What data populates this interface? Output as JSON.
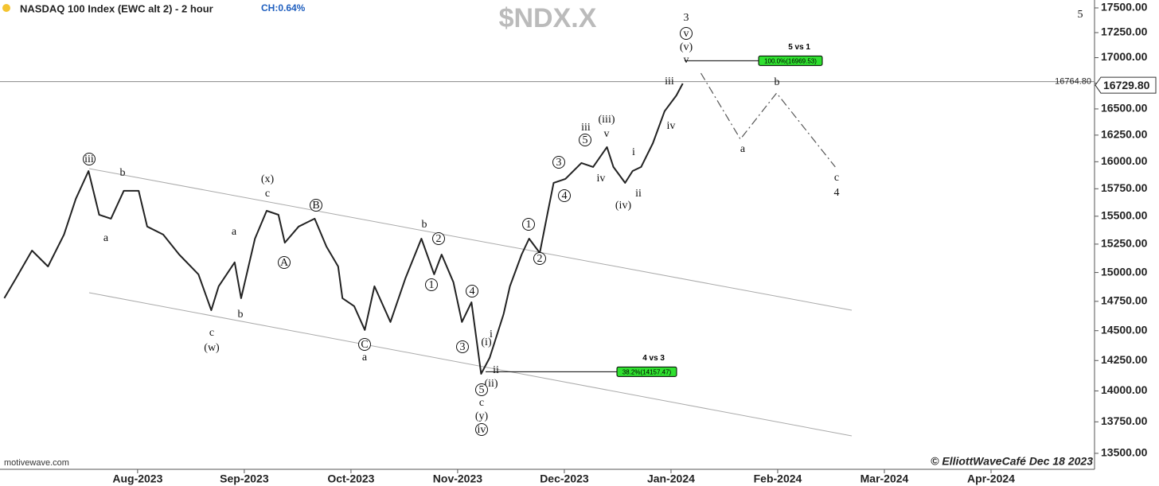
{
  "chart_data": {
    "type": "line",
    "title": "NASDAQ 100 Index (EWC alt 2) - 2 hour",
    "change": "CH:0.64%",
    "symbol": "$NDX.X",
    "source": "motivewave.com",
    "credit": "© ElliottWaveCafé Dec 18 2023",
    "log_scale": true,
    "xlim": [
      -1.29,
      8.97
    ],
    "xticks": [
      {
        "value": 0,
        "label": "Aug-2023"
      },
      {
        "value": 1,
        "label": "Sep-2023"
      },
      {
        "value": 2,
        "label": "Oct-2023"
      },
      {
        "value": 3,
        "label": "Nov-2023"
      },
      {
        "value": 4,
        "label": "Dec-2023"
      },
      {
        "value": 5,
        "label": "Jan-2024"
      },
      {
        "value": 6,
        "label": "Feb-2024"
      },
      {
        "value": 7,
        "label": "Mar-2024"
      },
      {
        "value": 8,
        "label": "Apr-2024"
      }
    ],
    "ylim": [
      13375,
      17581
    ],
    "yticks": [
      {
        "value": 13500,
        "label": "13500.00"
      },
      {
        "value": 13750,
        "label": "13750.00"
      },
      {
        "value": 14000,
        "label": "14000.00"
      },
      {
        "value": 14250,
        "label": "14250.00"
      },
      {
        "value": 14500,
        "label": "14500.00"
      },
      {
        "value": 14750,
        "label": "14750.00"
      },
      {
        "value": 15000,
        "label": "15000.00"
      },
      {
        "value": 15250,
        "label": "15250.00"
      },
      {
        "value": 15500,
        "label": "15500.00"
      },
      {
        "value": 15750,
        "label": "15750.00"
      },
      {
        "value": 16000,
        "label": "16000.00"
      },
      {
        "value": 16250,
        "label": "16250.00"
      },
      {
        "value": 16500,
        "label": "16500.00"
      },
      {
        "value": 16750,
        "label": "16750.00"
      },
      {
        "value": 17000,
        "label": "17000.00"
      },
      {
        "value": 17250,
        "label": "17250.00"
      },
      {
        "value": 17500,
        "label": "17500.00"
      }
    ],
    "series": [
      {
        "color": "#222222",
        "x": [
          -1.25,
          -1.14,
          -0.99,
          -0.84,
          -0.69,
          -0.58,
          -0.46,
          -0.36,
          -0.25,
          -0.13,
          0.01,
          0.09,
          0.24,
          0.39,
          0.57,
          0.69,
          0.76,
          0.91,
          0.97,
          1.1,
          1.21,
          1.32,
          1.38,
          1.51,
          1.66,
          1.77,
          1.88,
          1.92,
          2.03,
          2.13,
          2.22,
          2.37,
          2.51,
          2.66,
          2.78,
          2.85,
          2.96,
          3.04,
          3.13,
          3.22,
          3.3,
          3.43,
          3.49,
          3.6,
          3.67,
          3.77,
          3.84,
          3.9,
          4.01,
          4.16,
          4.27,
          4.4,
          4.46,
          4.57,
          4.64,
          4.72,
          4.83,
          4.94,
          5.05,
          5.11
        ],
        "values": [
          14777,
          14949,
          15193,
          15053,
          15335,
          15657,
          15914,
          15513,
          15478,
          15731,
          15731,
          15407,
          15335,
          15158,
          14984,
          14674,
          14880,
          15089,
          14777,
          15299,
          15549,
          15513,
          15263,
          15407,
          15478,
          15228,
          15053,
          14777,
          14709,
          14506,
          14880,
          14574,
          14949,
          15299,
          14984,
          15158,
          14915,
          14574,
          14742,
          14140,
          14272,
          14640,
          14880,
          15158,
          15299,
          15172,
          15513,
          15804,
          15841,
          15988,
          15951,
          16137,
          15951,
          15804,
          15914,
          15951,
          16174,
          16478,
          16630,
          16746
        ]
      },
      {
        "color": "#555555",
        "dash": true,
        "x": [
          5.28,
          5.65,
          5.99,
          6.54
        ],
        "values": [
          16847,
          16212,
          16653,
          15951
        ]
      }
    ],
    "levels": [
      {
        "value": 16764.8,
        "label": "16764.80"
      }
    ],
    "last_price": {
      "value": 16729.8,
      "label": "16729.80"
    },
    "fib_levels": [
      {
        "value": 16969.53,
        "label": "100.0%(16969.53)",
        "note": "5 vs 1"
      },
      {
        "value": 14157.47,
        "label": "38.2%(14157.47)",
        "note": "4 vs 3"
      }
    ],
    "annotations": [
      {
        "text": "iii",
        "circled": true
      },
      {
        "text": "b"
      },
      {
        "text": "a"
      },
      {
        "text": "c"
      },
      {
        "text": "(w)"
      },
      {
        "text": "a"
      },
      {
        "text": "b"
      },
      {
        "text": "(x)"
      },
      {
        "text": "c"
      },
      {
        "text": "B",
        "circled": true
      },
      {
        "text": "A",
        "circled": true
      },
      {
        "text": "C",
        "circled": true
      },
      {
        "text": "a"
      },
      {
        "text": "b"
      },
      {
        "text": "2",
        "circled": true
      },
      {
        "text": "1",
        "circled": true
      },
      {
        "text": "4",
        "circled": true
      },
      {
        "text": "3",
        "circled": true
      },
      {
        "text": "(i)"
      },
      {
        "text": "i"
      },
      {
        "text": "ii"
      },
      {
        "text": "(ii)"
      },
      {
        "text": "5",
        "circled": true
      },
      {
        "text": "c"
      },
      {
        "text": "(y)"
      },
      {
        "text": "iv",
        "circled": true
      },
      {
        "text": "1",
        "circled": true
      },
      {
        "text": "2",
        "circled": true
      },
      {
        "text": "3",
        "circled": true
      },
      {
        "text": "4",
        "circled": true
      },
      {
        "text": "iii"
      },
      {
        "text": "5",
        "circled": true
      },
      {
        "text": "iv"
      },
      {
        "text": "(iii)"
      },
      {
        "text": "v"
      },
      {
        "text": "i"
      },
      {
        "text": "ii"
      },
      {
        "text": "(iv)"
      },
      {
        "text": "iv"
      },
      {
        "text": "iii"
      },
      {
        "text": "3"
      },
      {
        "text": "v",
        "circled": true
      },
      {
        "text": "(v)"
      },
      {
        "text": "v"
      },
      {
        "text": "a"
      },
      {
        "text": "b"
      },
      {
        "text": "c"
      },
      {
        "text": "4"
      },
      {
        "text": "5"
      }
    ]
  }
}
